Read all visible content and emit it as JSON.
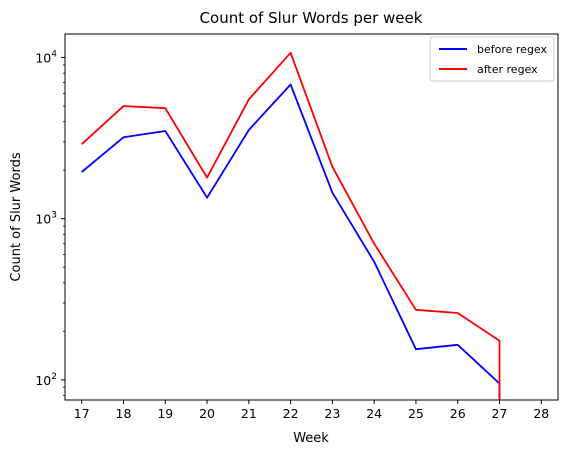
{
  "chart_data": {
    "type": "line",
    "title": "Count of Slur Words per week",
    "xlabel": "Week",
    "ylabel": "Count of Slur Words",
    "x_ticks": [
      17,
      18,
      19,
      20,
      21,
      22,
      23,
      24,
      25,
      26,
      27,
      28
    ],
    "xlim": [
      16.6,
      28.4
    ],
    "y_scale": "log",
    "ylim": [
      75,
      14000
    ],
    "y_major_ticks": [
      {
        "value": 100,
        "base": "10",
        "exp": "2"
      },
      {
        "value": 1000,
        "base": "10",
        "exp": "3"
      },
      {
        "value": 10000,
        "base": "10",
        "exp": "4"
      }
    ],
    "legend_position": "upper right",
    "grid": false,
    "series": [
      {
        "name": "before regex",
        "color": "#0000ff",
        "x": [
          17,
          18,
          19,
          20,
          21,
          22,
          23,
          24,
          25,
          26,
          27,
          27
        ],
        "values": [
          1950,
          3200,
          3500,
          1350,
          3550,
          6800,
          1450,
          540,
          155,
          165,
          95,
          75
        ]
      },
      {
        "name": "after regex",
        "color": "#ff0000",
        "x": [
          17,
          18,
          19,
          20,
          21,
          22,
          23,
          24,
          25,
          26,
          27,
          27
        ],
        "values": [
          2900,
          5000,
          4850,
          1800,
          5500,
          10700,
          2100,
          700,
          272,
          260,
          175,
          75
        ]
      }
    ]
  }
}
